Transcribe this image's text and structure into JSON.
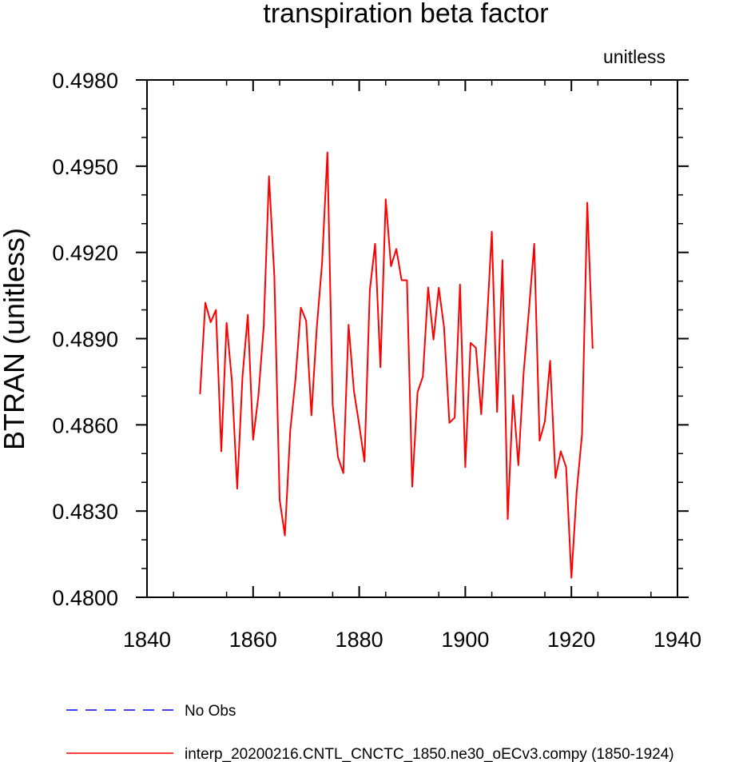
{
  "chart_data": {
    "type": "line",
    "title": "transpiration beta factor",
    "units_label": "unitless",
    "xlabel": "",
    "ylabel": "BTRAN  (unitless)",
    "xlim": [
      1840,
      1940
    ],
    "ylim": [
      0.48,
      0.498
    ],
    "x_ticks": [
      1840,
      1860,
      1880,
      1900,
      1920,
      1940
    ],
    "x_tick_labels": [
      "1840",
      "1860",
      "1880",
      "1900",
      "1920",
      "1940"
    ],
    "y_ticks": [
      0.48,
      0.483,
      0.486,
      0.489,
      0.492,
      0.495,
      0.498
    ],
    "y_tick_labels": [
      "0.4800",
      "0.4830",
      "0.4860",
      "0.4890",
      "0.4920",
      "0.4950",
      "0.4980"
    ],
    "grid": false,
    "legend_position": "bottom",
    "series": [
      {
        "name": "No Obs",
        "color": "#0000ff",
        "dash": true,
        "x": [],
        "values": []
      },
      {
        "name": "interp_20200216.CNTL_CNCTC_1850.ne30_oECv3.compy (1850-1924)",
        "color": "#ff0000",
        "dash": false,
        "x": [
          1850,
          1851,
          1852,
          1853,
          1854,
          1855,
          1856,
          1857,
          1858,
          1859,
          1860,
          1861,
          1862,
          1863,
          1864,
          1865,
          1866,
          1867,
          1868,
          1869,
          1870,
          1871,
          1872,
          1873,
          1874,
          1875,
          1876,
          1877,
          1878,
          1879,
          1880,
          1881,
          1882,
          1883,
          1884,
          1885,
          1886,
          1887,
          1888,
          1889,
          1890,
          1891,
          1892,
          1893,
          1894,
          1895,
          1896,
          1897,
          1898,
          1899,
          1900,
          1901,
          1902,
          1903,
          1904,
          1905,
          1906,
          1907,
          1908,
          1909,
          1910,
          1911,
          1912,
          1913,
          1914,
          1915,
          1916,
          1917,
          1918,
          1919,
          1920,
          1921,
          1922,
          1923,
          1924
        ],
        "values": [
          0.48707,
          0.49025,
          0.48957,
          0.49,
          0.48508,
          0.48955,
          0.48755,
          0.48378,
          0.48767,
          0.48983,
          0.48548,
          0.487,
          0.48943,
          0.49465,
          0.49117,
          0.4834,
          0.48215,
          0.4858,
          0.4876,
          0.49008,
          0.48962,
          0.48633,
          0.48938,
          0.49162,
          0.49548,
          0.4867,
          0.48488,
          0.48432,
          0.48948,
          0.48718,
          0.486,
          0.48472,
          0.49068,
          0.4923,
          0.488,
          0.49385,
          0.49152,
          0.49212,
          0.49103,
          0.49103,
          0.48385,
          0.48713,
          0.48768,
          0.49078,
          0.48897,
          0.49077,
          0.4894,
          0.48607,
          0.48625,
          0.49088,
          0.48453,
          0.48885,
          0.48868,
          0.48637,
          0.48935,
          0.49272,
          0.48645,
          0.49173,
          0.48272,
          0.48703,
          0.4846,
          0.4878,
          0.49,
          0.4923,
          0.48545,
          0.48612,
          0.48823,
          0.48415,
          0.48508,
          0.48453,
          0.48068,
          0.48367,
          0.48567,
          0.49373,
          0.48865
        ]
      }
    ]
  }
}
